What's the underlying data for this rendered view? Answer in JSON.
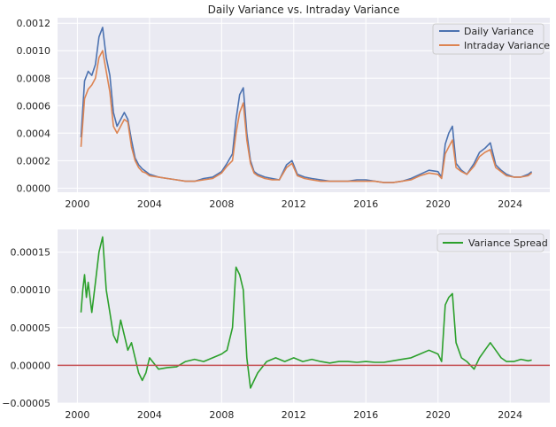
{
  "chart_data": [
    {
      "type": "line",
      "title": "Daily Variance vs. Intraday Variance",
      "xlabel": "",
      "ylabel": "",
      "xlim": [
        1998.9,
        2026.2
      ],
      "ylim": [
        -3e-05,
        0.00124
      ],
      "xticks": [
        2000,
        2004,
        2008,
        2012,
        2016,
        2020,
        2024
      ],
      "xtick_labels": [
        "2000",
        "2004",
        "2008",
        "2012",
        "2016",
        "2020",
        "2024"
      ],
      "yticks": [
        0,
        0.0002,
        0.0004,
        0.0006,
        0.0008,
        0.001,
        0.0012
      ],
      "ytick_labels": [
        "0.0000",
        "0.0002",
        "0.0004",
        "0.0006",
        "0.0008",
        "0.0010",
        "0.0012"
      ],
      "grid": true,
      "legend_position": "top-right",
      "series": [
        {
          "name": "Daily Variance",
          "color": "#4c72b0",
          "x": [
            2000.2,
            2000.4,
            2000.6,
            2000.8,
            2001.0,
            2001.2,
            2001.4,
            2001.6,
            2001.8,
            2002.0,
            2002.2,
            2002.4,
            2002.6,
            2002.8,
            2003.0,
            2003.2,
            2003.4,
            2003.6,
            2003.8,
            2004.0,
            2004.5,
            2005.0,
            2005.5,
            2006.0,
            2006.5,
            2007.0,
            2007.5,
            2008.0,
            2008.3,
            2008.6,
            2008.8,
            2009.0,
            2009.2,
            2009.4,
            2009.6,
            2009.8,
            2010.0,
            2010.4,
            2010.8,
            2011.2,
            2011.6,
            2011.9,
            2012.2,
            2012.6,
            2013.0,
            2013.5,
            2014.0,
            2014.5,
            2015.0,
            2015.5,
            2016.0,
            2016.5,
            2017.0,
            2017.5,
            2018.0,
            2018.5,
            2019.0,
            2019.5,
            2020.0,
            2020.2,
            2020.4,
            2020.6,
            2020.8,
            2021.0,
            2021.3,
            2021.6,
            2022.0,
            2022.3,
            2022.6,
            2022.9,
            2023.2,
            2023.5,
            2023.8,
            2024.2,
            2024.6,
            2025.0,
            2025.2
          ],
          "y": [
            0.00037,
            0.00078,
            0.00085,
            0.00082,
            0.0009,
            0.0011,
            0.00117,
            0.00095,
            0.00082,
            0.00055,
            0.00045,
            0.0005,
            0.00055,
            0.0005,
            0.00035,
            0.00022,
            0.00017,
            0.00014,
            0.00012,
            0.0001,
            8e-05,
            7e-05,
            6e-05,
            5e-05,
            5e-05,
            7e-05,
            8e-05,
            0.00012,
            0.00018,
            0.00025,
            0.0005,
            0.00068,
            0.00073,
            0.0004,
            0.0002,
            0.00012,
            0.0001,
            8e-05,
            7e-05,
            6e-05,
            0.00017,
            0.0002,
            0.0001,
            8e-05,
            7e-05,
            6e-05,
            5e-05,
            5e-05,
            5e-05,
            6e-05,
            6e-05,
            5e-05,
            4e-05,
            4e-05,
            5e-05,
            7e-05,
            0.0001,
            0.00013,
            0.00012,
            8e-05,
            0.00032,
            0.0004,
            0.00045,
            0.00018,
            0.00013,
            0.0001,
            0.00018,
            0.00026,
            0.00029,
            0.00033,
            0.00017,
            0.00013,
            0.0001,
            8e-05,
            8e-05,
            0.0001,
            0.00012
          ]
        },
        {
          "name": "Intraday Variance",
          "color": "#dd8452",
          "x": [
            2000.2,
            2000.4,
            2000.6,
            2000.8,
            2001.0,
            2001.2,
            2001.4,
            2001.6,
            2001.8,
            2002.0,
            2002.2,
            2002.4,
            2002.6,
            2002.8,
            2003.0,
            2003.2,
            2003.4,
            2003.6,
            2003.8,
            2004.0,
            2004.5,
            2005.0,
            2005.5,
            2006.0,
            2006.5,
            2007.0,
            2007.5,
            2008.0,
            2008.3,
            2008.6,
            2008.8,
            2009.0,
            2009.2,
            2009.4,
            2009.6,
            2009.8,
            2010.0,
            2010.4,
            2010.8,
            2011.2,
            2011.6,
            2011.9,
            2012.2,
            2012.6,
            2013.0,
            2013.5,
            2014.0,
            2014.5,
            2015.0,
            2015.5,
            2016.0,
            2016.5,
            2017.0,
            2017.5,
            2018.0,
            2018.5,
            2019.0,
            2019.5,
            2020.0,
            2020.2,
            2020.4,
            2020.6,
            2020.8,
            2021.0,
            2021.3,
            2021.6,
            2022.0,
            2022.3,
            2022.6,
            2022.9,
            2023.2,
            2023.5,
            2023.8,
            2024.2,
            2024.6,
            2025.0,
            2025.2
          ],
          "y": [
            0.0003,
            0.00065,
            0.00072,
            0.00075,
            0.0008,
            0.00095,
            0.001,
            0.00085,
            0.0007,
            0.00045,
            0.0004,
            0.00045,
            0.0005,
            0.00048,
            0.0003,
            0.0002,
            0.00015,
            0.00012,
            0.00011,
            9e-05,
            8e-05,
            7e-05,
            6e-05,
            5e-05,
            5e-05,
            6e-05,
            7e-05,
            0.00011,
            0.00016,
            0.0002,
            0.0004,
            0.00055,
            0.00062,
            0.00035,
            0.00018,
            0.00011,
            9e-05,
            7e-05,
            6e-05,
            6e-05,
            0.00015,
            0.00018,
            9e-05,
            7e-05,
            6e-05,
            5e-05,
            5e-05,
            5e-05,
            5e-05,
            5e-05,
            5e-05,
            5e-05,
            4e-05,
            4e-05,
            5e-05,
            6e-05,
            9e-05,
            0.00011,
            0.0001,
            7e-05,
            0.00025,
            0.0003,
            0.00035,
            0.00015,
            0.00012,
            0.0001,
            0.00016,
            0.00023,
            0.00026,
            0.00028,
            0.00015,
            0.00012,
            9e-05,
            8e-05,
            8e-05,
            9e-05,
            0.00011
          ]
        }
      ]
    },
    {
      "type": "line",
      "title": "",
      "xlabel": "",
      "ylabel": "",
      "xlim": [
        1998.9,
        2026.2
      ],
      "ylim": [
        -5e-05,
        0.00018
      ],
      "xticks": [
        2000,
        2004,
        2008,
        2012,
        2016,
        2020,
        2024
      ],
      "xtick_labels": [
        "2000",
        "2004",
        "2008",
        "2012",
        "2016",
        "2020",
        "2024"
      ],
      "yticks": [
        -5e-05,
        0,
        5e-05,
        0.0001,
        0.00015
      ],
      "ytick_labels": [
        "−0.00005",
        "0.00000",
        "0.00005",
        "0.00010",
        "0.00015"
      ],
      "grid": true,
      "legend_position": "top-right",
      "hline": {
        "y": 0,
        "color": "#c44e52"
      },
      "series": [
        {
          "name": "Variance Spread",
          "color": "#2ca02c",
          "x": [
            2000.2,
            2000.3,
            2000.4,
            2000.5,
            2000.6,
            2000.8,
            2001.0,
            2001.2,
            2001.4,
            2001.6,
            2001.8,
            2002.0,
            2002.2,
            2002.4,
            2002.6,
            2002.8,
            2003.0,
            2003.2,
            2003.4,
            2003.6,
            2003.8,
            2004.0,
            2004.5,
            2005.0,
            2005.5,
            2006.0,
            2006.5,
            2007.0,
            2007.5,
            2008.0,
            2008.3,
            2008.6,
            2008.8,
            2009.0,
            2009.2,
            2009.4,
            2009.6,
            2009.8,
            2010.0,
            2010.5,
            2011.0,
            2011.5,
            2012.0,
            2012.5,
            2013.0,
            2013.5,
            2014.0,
            2014.5,
            2015.0,
            2015.5,
            2016.0,
            2016.5,
            2017.0,
            2017.5,
            2018.0,
            2018.5,
            2019.0,
            2019.5,
            2020.0,
            2020.2,
            2020.4,
            2020.6,
            2020.8,
            2021.0,
            2021.3,
            2021.6,
            2022.0,
            2022.3,
            2022.6,
            2022.9,
            2023.2,
            2023.5,
            2023.8,
            2024.2,
            2024.6,
            2025.0,
            2025.2
          ],
          "y": [
            7e-05,
            0.0001,
            0.00012,
            9e-05,
            0.00011,
            7e-05,
            0.00011,
            0.00015,
            0.00017,
            0.0001,
            7e-05,
            4e-05,
            3e-05,
            6e-05,
            4e-05,
            2e-05,
            3e-05,
            1e-05,
            -1e-05,
            -2e-05,
            -1e-05,
            1e-05,
            -5e-06,
            -3e-06,
            -2e-06,
            5e-06,
            8e-06,
            5e-06,
            1e-05,
            1.5e-05,
            2e-05,
            5e-05,
            0.00013,
            0.00012,
            0.0001,
            1e-05,
            -3e-05,
            -2e-05,
            -1e-05,
            5e-06,
            1e-05,
            5e-06,
            1e-05,
            5e-06,
            8e-06,
            5e-06,
            3e-06,
            5e-06,
            5e-06,
            4e-06,
            5e-06,
            4e-06,
            4e-06,
            6e-06,
            8e-06,
            1e-05,
            1.5e-05,
            2e-05,
            1.5e-05,
            5e-06,
            8e-05,
            9e-05,
            9.5e-05,
            3e-05,
            1e-05,
            5e-06,
            -5e-06,
            1e-05,
            2e-05,
            3e-05,
            2e-05,
            1e-05,
            5e-06,
            5e-06,
            8e-06,
            6e-06,
            7e-06
          ]
        }
      ]
    }
  ]
}
